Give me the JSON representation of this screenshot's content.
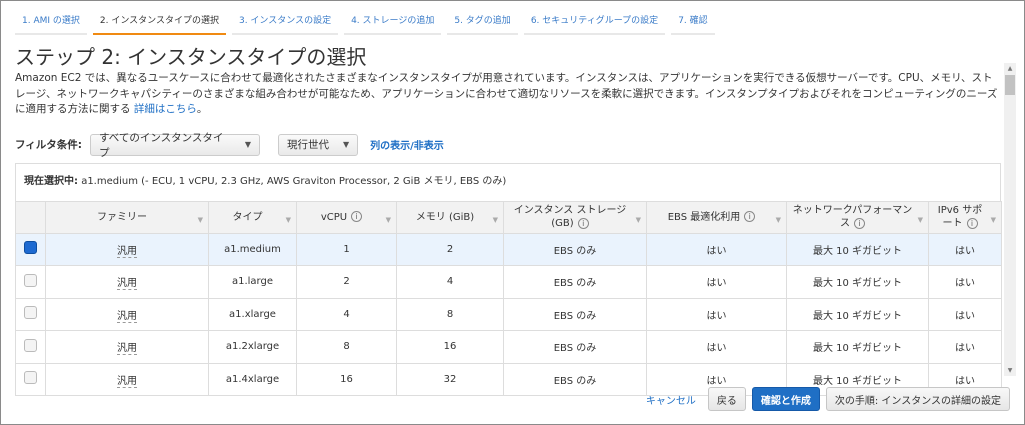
{
  "tabs": [
    "1. AMI の選択",
    "2. インスタンスタイプの選択",
    "3. インスタンスの設定",
    "4. ストレージの追加",
    "5. タグの追加",
    "6. セキュリティグループの設定",
    "7. 確認"
  ],
  "active_tab": 1,
  "title": "ステップ 2: インスタンスタイプの選択",
  "description": "Amazon EC2 では、異なるユースケースに合わせて最適化されたさまざまなインスタンスタイプが用意されています。インスタンスは、アプリケーションを実行できる仮想サーバーです。CPU、メモリ、ストレージ、ネットワークキャパシティーのさまざまな組み合わせが可能なため、アプリケーションに合わせて適切なリソースを柔軟に選択できます。インスタンプタイプおよびそれをコンピューティングのニーズに適用する方法に関する",
  "details_link": "詳細はこちら",
  "details_suffix": "。",
  "filter": {
    "label": "フィルタ条件:",
    "type_select": "すべてのインスタンスタイプ",
    "generation_select": "現行世代",
    "toggle_columns": "列の表示/非表示"
  },
  "current": {
    "label": "現在選択中:",
    "value": "a1.medium (- ECU, 1 vCPU, 2.3 GHz, AWS Graviton Processor, 2 GiB メモリ, EBS のみ)"
  },
  "columns": [
    "ファミリー",
    "タイプ",
    "vCPU",
    "メモリ (GiB)",
    "インスタンス ストレージ (GB)",
    "EBS 最適化利用",
    "ネットワークパフォーマンス",
    "IPv6 サポート"
  ],
  "rows": [
    {
      "selected": true,
      "family": "汎用",
      "type": "a1.medium",
      "vcpu": "1",
      "memory": "2",
      "storage": "EBS のみ",
      "ebs": "はい",
      "network": "最大 10 ギガビット",
      "ipv6": "はい"
    },
    {
      "selected": false,
      "family": "汎用",
      "type": "a1.large",
      "vcpu": "2",
      "memory": "4",
      "storage": "EBS のみ",
      "ebs": "はい",
      "network": "最大 10 ギガビット",
      "ipv6": "はい"
    },
    {
      "selected": false,
      "family": "汎用",
      "type": "a1.xlarge",
      "vcpu": "4",
      "memory": "8",
      "storage": "EBS のみ",
      "ebs": "はい",
      "network": "最大 10 ギガビット",
      "ipv6": "はい"
    },
    {
      "selected": false,
      "family": "汎用",
      "type": "a1.2xlarge",
      "vcpu": "8",
      "memory": "16",
      "storage": "EBS のみ",
      "ebs": "はい",
      "network": "最大 10 ギガビット",
      "ipv6": "はい"
    },
    {
      "selected": false,
      "family": "汎用",
      "type": "a1.4xlarge",
      "vcpu": "16",
      "memory": "32",
      "storage": "EBS のみ",
      "ebs": "はい",
      "network": "最大 10 ギガビット",
      "ipv6": "はい"
    }
  ],
  "footer": {
    "cancel": "キャンセル",
    "back": "戻る",
    "review_launch": "確認と作成",
    "next": "次の手順: インスタンスの詳細の設定"
  },
  "colors": {
    "accent": "#1f6fc5",
    "active_tab": "#f08a12",
    "selected_row": "#eaf3fd"
  }
}
